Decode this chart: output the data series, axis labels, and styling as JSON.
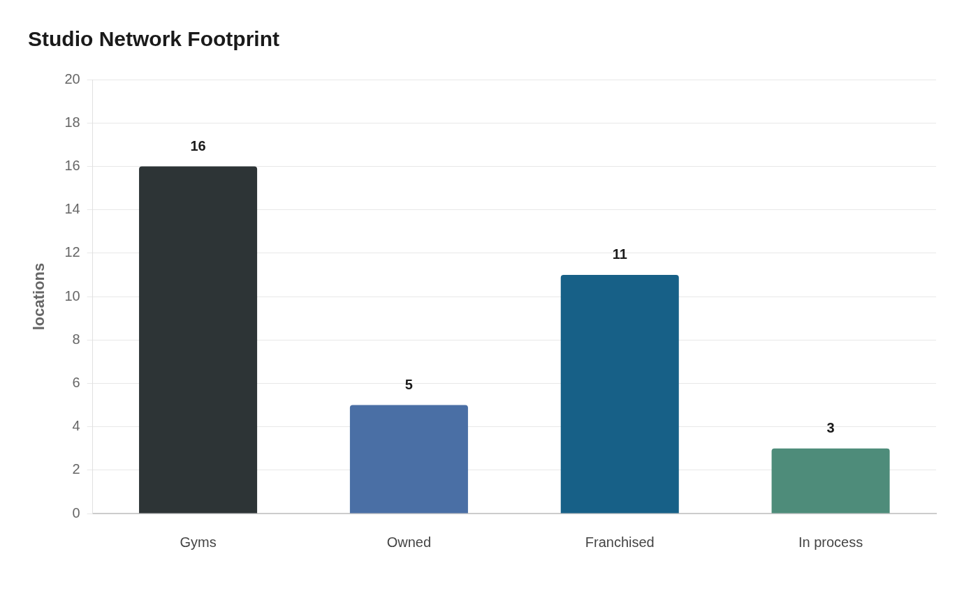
{
  "chart_data": {
    "type": "bar",
    "title": "Studio Network Footprint",
    "ylabel": "locations",
    "categories": [
      "Gyms",
      "Owned",
      "Franchised",
      "In process"
    ],
    "values": [
      16,
      5,
      11,
      3
    ],
    "colors": [
      "#2d3436",
      "#4a6fa5",
      "#176087",
      "#4e8c7a"
    ],
    "ylim": [
      0,
      20
    ],
    "yticks": [
      0,
      2,
      4,
      6,
      8,
      10,
      12,
      14,
      16,
      18,
      20
    ],
    "grid": "y",
    "legend": false,
    "data_labels": true
  }
}
